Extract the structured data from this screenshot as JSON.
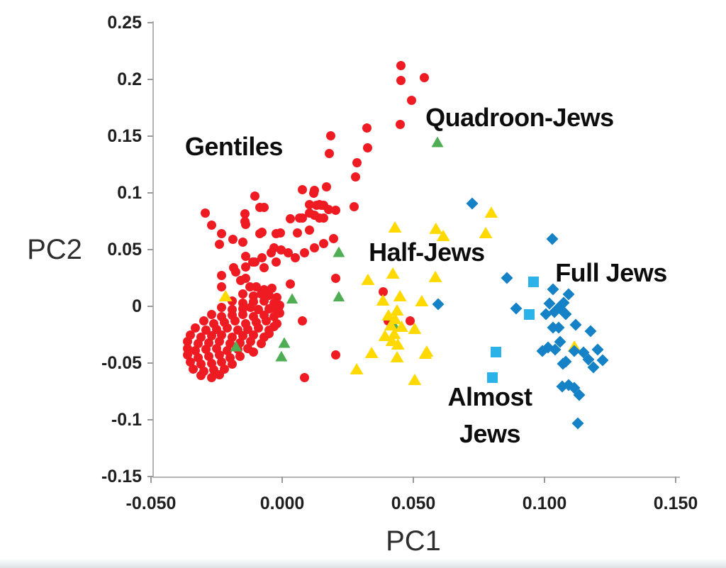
{
  "chart_data": {
    "type": "scatter",
    "title": "",
    "xlabel": "PC1",
    "ylabel": "PC2",
    "xlim": [
      -0.05,
      0.151
    ],
    "ylim": [
      -0.15,
      0.2513
    ],
    "grid": false,
    "legend_position": "none",
    "x_ticks": {
      "values": [
        -0.05,
        0.0,
        0.05,
        0.1,
        0.15
      ],
      "labels": [
        "-0.050",
        "0.000",
        "0.050",
        "0.100",
        "0.150"
      ]
    },
    "y_ticks": {
      "values": [
        0.25,
        0.2,
        0.15,
        0.1,
        0.05,
        0,
        -0.05,
        -0.1,
        -0.15
      ],
      "labels": [
        "0.25",
        "0.2",
        "0.15",
        "0.1",
        "0.05",
        "0",
        "-0.05",
        "-0.1",
        "-0.15"
      ]
    },
    "annotations": [
      {
        "text": "Gentiles",
        "x": -0.0184,
        "y": 0.1406
      },
      {
        "text": "Quadroon-Jews",
        "x": 0.0905,
        "y": 0.1663
      },
      {
        "text": "Half-Jews",
        "x": 0.0551,
        "y": 0.0475
      },
      {
        "text": "Full Jews",
        "x": 0.1254,
        "y": 0.0294
      },
      {
        "text": "Almost\nJews",
        "x": 0.0792,
        "y": -0.0963
      }
    ],
    "series": [
      {
        "id": "gentiles",
        "name": "Gentiles",
        "marker": "circle",
        "color": "#ee1b22",
        "size": [
          13,
          13
        ],
        "points": [
          [
            0.0454,
            0.2125
          ],
          [
            0.0543,
            0.2013
          ],
          [
            0.0454,
            0.1988
          ],
          [
            0.0492,
            0.1813
          ],
          [
            0.0451,
            0.1606
          ],
          [
            0.0322,
            0.1569
          ],
          [
            0.0184,
            0.1506
          ],
          [
            0.0327,
            0.14
          ],
          [
            0.0181,
            0.135
          ],
          [
            0.0286,
            0.1263
          ],
          [
            0.0281,
            0.1138
          ],
          [
            0.0168,
            0.1056
          ],
          [
            0.0078,
            0.1031
          ],
          [
            0.0122,
            0.1025
          ],
          [
            0.0119,
            0.0994
          ],
          [
            0.0149,
            0.0888
          ],
          [
            0.0273,
            0.0881
          ],
          [
            -0.0103,
            0.0969
          ],
          [
            -0.0068,
            0.0869
          ],
          [
            -0.0292,
            0.0825
          ],
          [
            -0.0143,
            0.0813
          ],
          [
            -0.0138,
            0.0719
          ],
          [
            -0.027,
            0.0713
          ],
          [
            -0.0086,
            0.0875
          ],
          [
            -0.0143,
            0.0744
          ],
          [
            -0.0076,
            0.0656
          ],
          [
            -0.0022,
            0.0638
          ],
          [
            0.0032,
            0.0775
          ],
          [
            0.0059,
            0.065
          ],
          [
            0.0105,
            0.0669
          ],
          [
            0.0065,
            0.0781
          ],
          [
            0.0105,
            0.0825
          ],
          [
            0.0141,
            0.09
          ],
          [
            0.0176,
            0.0856
          ],
          [
            0.0203,
            0.0844
          ],
          [
            0.0105,
            0.09
          ],
          [
            0.0132,
            0.0888
          ],
          [
            0.0159,
            0.0888
          ],
          [
            0.0122,
            0.0806
          ],
          [
            0.0141,
            0.0781
          ],
          [
            0.0159,
            0.0781
          ],
          [
            -0.023,
            0.0638
          ],
          [
            -0.0189,
            0.0588
          ],
          [
            -0.0238,
            0.0544
          ],
          [
            -0.0149,
            0.0563
          ],
          [
            -0.0084,
            0.0638
          ],
          [
            -0.0008,
            0.065
          ],
          [
            -0.003,
            0.0513
          ],
          [
            0.0024,
            0.0469
          ],
          [
            -0.0138,
            0.0438
          ],
          [
            -0.0103,
            0.0388
          ],
          [
            -0.0184,
            0.0338
          ],
          [
            -0.0068,
            0.0338
          ],
          [
            -0.0022,
            0.0388
          ],
          [
            -0.0232,
            0.0275
          ],
          [
            -0.0157,
            0.0231
          ],
          [
            -0.0122,
            0.0169
          ],
          [
            -0.023,
            0.0169
          ],
          [
            -0.0003,
            0.05
          ],
          [
            -0.0041,
            0.0469
          ],
          [
            -0.0076,
            0.0431
          ],
          [
            -0.0111,
            0.0388
          ],
          [
            -0.0138,
            0.0344
          ],
          [
            -0.0176,
            0.0306
          ],
          [
            -0.0138,
            0.0244
          ],
          [
            0.0051,
            0.0431
          ],
          [
            0.0086,
            0.0469
          ],
          [
            0.0122,
            0.0513
          ],
          [
            0.0159,
            0.0556
          ],
          [
            0.0195,
            0.0594
          ],
          [
            0.0205,
            0.025
          ],
          [
            0.0386,
            0.0131
          ],
          [
            -0.0011,
            -0.0006
          ],
          [
            0.0078,
            -0.0131
          ],
          [
            0.0403,
            -0.0125
          ],
          [
            0.0489,
            -0.0131
          ],
          [
            0.0205,
            -0.0425
          ],
          [
            0.0084,
            -0.0631
          ],
          [
            0.0078,
            0.0781
          ],
          [
            0.0032,
            0.02
          ],
          [
            -0.01,
            0.017
          ],
          [
            -0.007,
            0.015
          ],
          [
            -0.004,
            0.016
          ],
          [
            -0.015,
            0.011
          ],
          [
            -0.011,
            0.009
          ],
          [
            -0.008,
            0.011
          ],
          [
            -0.005,
            0.01
          ],
          [
            -0.002,
            0.008
          ],
          [
            -0.019,
            0.005
          ],
          [
            -0.015,
            0.003
          ],
          [
            -0.011,
            0.004
          ],
          [
            -0.007,
            0.005
          ],
          [
            -0.003,
            0.003
          ],
          [
            -0.001,
            0.001
          ],
          [
            -0.023,
            -0.001
          ],
          [
            -0.019,
            -0.003
          ],
          [
            -0.015,
            -0.002
          ],
          [
            -0.012,
            -0.001
          ],
          [
            -0.009,
            -0.003
          ],
          [
            -0.005,
            -0.002
          ],
          [
            -0.002,
            -0.004
          ],
          [
            -0.027,
            -0.007
          ],
          [
            -0.023,
            -0.009
          ],
          [
            -0.019,
            -0.008
          ],
          [
            -0.015,
            -0.007
          ],
          [
            -0.011,
            -0.009
          ],
          [
            -0.007,
            -0.008
          ],
          [
            -0.003,
            -0.009
          ],
          [
            -0.001,
            -0.006
          ],
          [
            -0.03,
            -0.013
          ],
          [
            -0.026,
            -0.015
          ],
          [
            -0.022,
            -0.014
          ],
          [
            -0.018,
            -0.013
          ],
          [
            -0.014,
            -0.015
          ],
          [
            -0.01,
            -0.014
          ],
          [
            -0.006,
            -0.013
          ],
          [
            -0.002,
            -0.015
          ],
          [
            -0.033,
            -0.019
          ],
          [
            -0.029,
            -0.021
          ],
          [
            -0.025,
            -0.02
          ],
          [
            -0.021,
            -0.019
          ],
          [
            -0.017,
            -0.021
          ],
          [
            -0.013,
            -0.02
          ],
          [
            -0.009,
            -0.019
          ],
          [
            -0.005,
            -0.021
          ],
          [
            -0.003,
            -0.018
          ],
          [
            -0.035,
            -0.025
          ],
          [
            -0.031,
            -0.027
          ],
          [
            -0.027,
            -0.026
          ],
          [
            -0.023,
            -0.025
          ],
          [
            -0.019,
            -0.027
          ],
          [
            -0.015,
            -0.026
          ],
          [
            -0.011,
            -0.025
          ],
          [
            -0.007,
            -0.027
          ],
          [
            -0.005,
            -0.024
          ],
          [
            -0.036,
            -0.031
          ],
          [
            -0.032,
            -0.033
          ],
          [
            -0.028,
            -0.032
          ],
          [
            -0.024,
            -0.031
          ],
          [
            -0.02,
            -0.033
          ],
          [
            -0.016,
            -0.032
          ],
          [
            -0.012,
            -0.031
          ],
          [
            -0.008,
            -0.033
          ],
          [
            -0.036,
            -0.037
          ],
          [
            -0.033,
            -0.039
          ],
          [
            -0.029,
            -0.038
          ],
          [
            -0.025,
            -0.037
          ],
          [
            -0.021,
            -0.039
          ],
          [
            -0.017,
            -0.038
          ],
          [
            -0.013,
            -0.037
          ],
          [
            -0.011,
            -0.04
          ],
          [
            -0.036,
            -0.043
          ],
          [
            -0.032,
            -0.045
          ],
          [
            -0.028,
            -0.044
          ],
          [
            -0.024,
            -0.043
          ],
          [
            -0.02,
            -0.045
          ],
          [
            -0.016,
            -0.044
          ],
          [
            -0.035,
            -0.049
          ],
          [
            -0.031,
            -0.051
          ],
          [
            -0.027,
            -0.05
          ],
          [
            -0.023,
            -0.049
          ],
          [
            -0.019,
            -0.051
          ],
          [
            -0.034,
            -0.055
          ],
          [
            -0.03,
            -0.057
          ],
          [
            -0.026,
            -0.056
          ],
          [
            -0.022,
            -0.055
          ],
          [
            -0.031,
            -0.061
          ],
          [
            -0.027,
            -0.063
          ],
          [
            -0.024,
            -0.06
          ]
        ]
      },
      {
        "id": "quadroon-jews",
        "name": "Quadroon-Jews",
        "marker": "triangle",
        "color": "#4fae53",
        "size": [
          17,
          15
        ],
        "points": [
          [
            0.0592,
            0.145
          ],
          [
            0.0216,
            0.0481
          ],
          [
            0.0216,
            0.0088
          ],
          [
            0.0038,
            0.0069
          ],
          [
            0.0008,
            -0.0319
          ],
          [
            -0.0003,
            -0.0438
          ],
          [
            -0.0176,
            -0.035
          ],
          [
            0.0427,
            -0.0163
          ]
        ]
      },
      {
        "id": "half-jews",
        "name": "Half-Jews",
        "marker": "triangle",
        "color": "#ffd900",
        "size": [
          19,
          16
        ],
        "points": [
          [
            0.043,
            0.07
          ],
          [
            0.0586,
            0.0688
          ],
          [
            0.0614,
            0.0625
          ],
          [
            0.0776,
            0.065
          ],
          [
            0.0797,
            0.083
          ],
          [
            0.0327,
            0.0238
          ],
          [
            0.0422,
            0.0294
          ],
          [
            0.0584,
            0.0263
          ],
          [
            0.0384,
            0.0056
          ],
          [
            0.0449,
            0.0094
          ],
          [
            0.0532,
            0.005
          ],
          [
            0.0438,
            -0.0031
          ],
          [
            0.0405,
            -0.0075
          ],
          [
            0.043,
            -0.0106
          ],
          [
            0.0414,
            -0.0163
          ],
          [
            0.0455,
            -0.0175
          ],
          [
            0.0427,
            -0.0238
          ],
          [
            0.0392,
            -0.0256
          ],
          [
            0.0419,
            -0.03
          ],
          [
            0.0441,
            -0.0331
          ],
          [
            0.0505,
            -0.0194
          ],
          [
            0.0341,
            -0.0406
          ],
          [
            0.0438,
            -0.0444
          ],
          [
            0.0546,
            -0.0413
          ],
          [
            0.0284,
            -0.055
          ],
          [
            0.0505,
            -0.0644
          ],
          [
            0.0551,
            -0.0394
          ],
          [
            -0.0216,
            0.0094
          ],
          [
            0.1114,
            -0.035
          ]
        ]
      },
      {
        "id": "almost-jews",
        "name": "Almost Jews",
        "marker": "square",
        "color": "#2bb2e8",
        "size": [
          15,
          15
        ],
        "points": [
          [
            0.0957,
            0.0213
          ],
          [
            0.0943,
            -0.0069
          ],
          [
            0.0816,
            -0.0406
          ],
          [
            0.08,
            -0.0625
          ]
        ]
      },
      {
        "id": "full-jews",
        "name": "Full Jews",
        "marker": "diamond",
        "color": "#1581c6",
        "size": [
          12,
          12
        ],
        "points": [
          [
            0.0724,
            0.0906
          ],
          [
            0.103,
            0.0594
          ],
          [
            0.0857,
            0.025
          ],
          [
            0.0595,
            0.0019
          ],
          [
            0.0892,
            -0.0019
          ],
          [
            0.1032,
            0.015
          ],
          [
            0.1092,
            0.0106
          ],
          [
            0.1019,
            0.0025
          ],
          [
            0.1059,
            0.0
          ],
          [
            0.1073,
            0.0031
          ],
          [
            0.1005,
            -0.0069
          ],
          [
            0.1038,
            -0.005
          ],
          [
            0.1068,
            -0.0038
          ],
          [
            0.1081,
            -0.0069
          ],
          [
            0.1032,
            -0.0188
          ],
          [
            0.1054,
            -0.0188
          ],
          [
            0.1119,
            -0.0163
          ],
          [
            0.1176,
            -0.0219
          ],
          [
            0.1059,
            -0.0313
          ],
          [
            0.1013,
            -0.0363
          ],
          [
            0.0992,
            -0.0394
          ],
          [
            0.1041,
            -0.0381
          ],
          [
            0.1114,
            -0.0394
          ],
          [
            0.1149,
            -0.0406
          ],
          [
            0.1203,
            -0.0381
          ],
          [
            0.1222,
            -0.0475
          ],
          [
            0.1168,
            -0.0469
          ],
          [
            0.1081,
            -0.0488
          ],
          [
            0.107,
            -0.0506
          ],
          [
            0.1186,
            -0.0538
          ],
          [
            0.1068,
            -0.0706
          ],
          [
            0.1092,
            -0.0694
          ],
          [
            0.1114,
            -0.0719
          ],
          [
            0.1132,
            -0.0781
          ],
          [
            0.1127,
            -0.1031
          ]
        ]
      }
    ]
  }
}
